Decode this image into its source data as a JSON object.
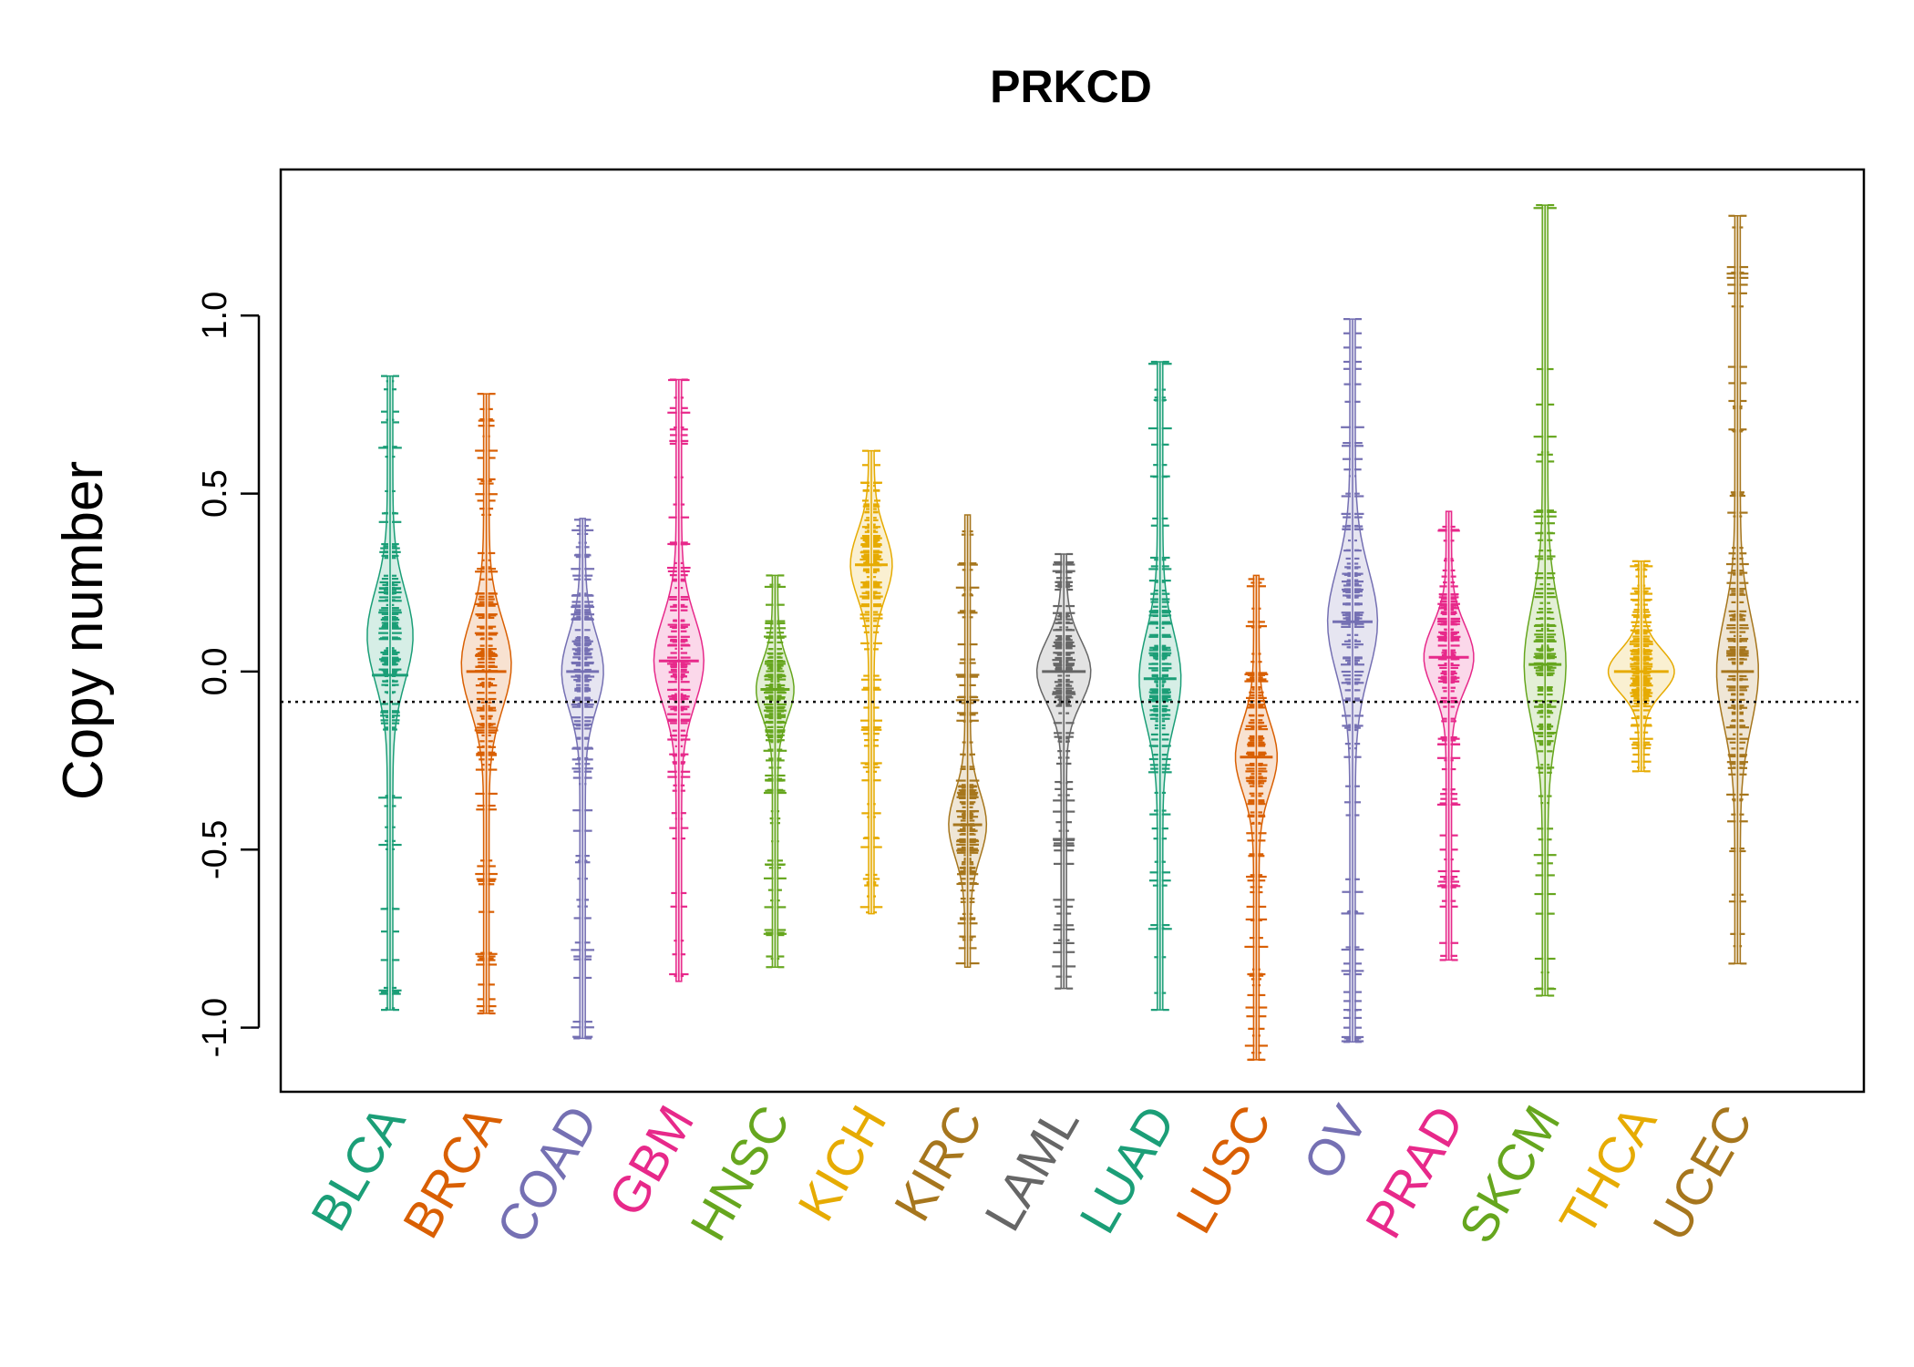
{
  "chart_data": {
    "type": "beanplot",
    "title": "PRKCD",
    "xlabel": "",
    "ylabel": "Copy number",
    "ylim": [
      -1.18,
      1.41
    ],
    "yticks": [
      -1.0,
      -0.5,
      0.0,
      0.5,
      1.0
    ],
    "ytick_labels": [
      "-1.0",
      "-0.5",
      "0.0",
      "0.5",
      "1.0"
    ],
    "reference_line": -0.085,
    "categories": [
      {
        "name": "BLCA",
        "color": "#1B9E77",
        "min": -0.95,
        "max": 0.83,
        "median": -0.01,
        "mode": 0.1,
        "width": 0.5,
        "outliers": [
          0.83,
          0.73,
          0.7,
          -0.73,
          -0.9,
          -0.95
        ]
      },
      {
        "name": "BRCA",
        "color": "#D95F02",
        "min": -0.96,
        "max": 0.78,
        "median": 0.0,
        "mode": 0.02,
        "width": 0.55,
        "outliers": [
          0.78,
          0.6,
          0.54,
          0.48,
          -0.8,
          -0.92,
          -0.96
        ]
      },
      {
        "name": "COAD",
        "color": "#7570B3",
        "min": -1.03,
        "max": 0.43,
        "median": 0.0,
        "mode": 0.0,
        "width": 0.45,
        "outliers": [
          -0.8,
          -0.86,
          -1.03
        ]
      },
      {
        "name": "GBM",
        "color": "#E7298A",
        "min": -0.87,
        "max": 0.82,
        "median": 0.03,
        "mode": 0.03,
        "width": 0.55,
        "outliers": [
          0.82,
          0.74,
          0.68,
          0.64
        ]
      },
      {
        "name": "HNSC",
        "color": "#66A61E",
        "min": -0.83,
        "max": 0.27,
        "median": -0.05,
        "mode": -0.05,
        "width": 0.4,
        "outliers": [
          0.27,
          -0.74,
          -0.8,
          -0.83
        ]
      },
      {
        "name": "KICH",
        "color": "#E6AB02",
        "min": -0.68,
        "max": 0.62,
        "median": 0.3,
        "mode": 0.3,
        "width": 0.45,
        "outliers": [
          0.62,
          0.58,
          0.48
        ]
      },
      {
        "name": "KIRC",
        "color": "#A6761D",
        "min": -0.83,
        "max": 0.44,
        "median": -0.43,
        "mode": -0.43,
        "width": 0.4,
        "outliers": []
      },
      {
        "name": "LAML",
        "color": "#666666",
        "min": -0.89,
        "max": 0.33,
        "median": 0.0,
        "mode": 0.0,
        "width": 0.6,
        "outliers": [
          0.33,
          0.23,
          -0.31,
          -0.33,
          -0.66,
          -0.89
        ]
      },
      {
        "name": "LUAD",
        "color": "#1B9E77",
        "min": -0.95,
        "max": 0.87,
        "median": -0.02,
        "mode": -0.02,
        "width": 0.45,
        "outliers": [
          0.87,
          0.41,
          -0.95
        ]
      },
      {
        "name": "LUSC",
        "color": "#D95F02",
        "min": -1.09,
        "max": 0.27,
        "median": -0.24,
        "mode": -0.24,
        "width": 0.45,
        "outliers": [
          -0.85,
          -1.09
        ]
      },
      {
        "name": "OV",
        "color": "#7570B3",
        "min": -1.04,
        "max": 0.99,
        "median": 0.14,
        "mode": 0.14,
        "width": 0.55,
        "outliers": [
          0.99,
          0.95,
          0.91,
          0.87,
          0.85,
          -0.82,
          -0.85,
          -0.9,
          -0.95,
          -1.0,
          -1.04
        ]
      },
      {
        "name": "PRAD",
        "color": "#E7298A",
        "min": -0.81,
        "max": 0.45,
        "median": 0.04,
        "mode": 0.04,
        "width": 0.55,
        "outliers": [
          -0.37,
          -0.46,
          -0.5,
          -0.6,
          -0.66,
          -0.81
        ]
      },
      {
        "name": "SKCM",
        "color": "#66A61E",
        "min": -0.91,
        "max": 1.31,
        "median": 0.02,
        "mode": 0.02,
        "width": 0.45,
        "outliers": [
          1.31,
          0.75,
          0.59,
          -0.89,
          -0.91
        ]
      },
      {
        "name": "THCA",
        "color": "#E6AB02",
        "min": -0.28,
        "max": 0.31,
        "median": 0.0,
        "mode": 0.0,
        "width": 0.75,
        "outliers": [
          0.31,
          0.2,
          -0.28
        ]
      },
      {
        "name": "UCEC",
        "color": "#A6761D",
        "min": -0.82,
        "max": 1.28,
        "median": 0.0,
        "mode": 0.0,
        "width": 0.45,
        "outliers": [
          1.28,
          0.81,
          0.76,
          0.68,
          -0.82
        ]
      }
    ]
  }
}
